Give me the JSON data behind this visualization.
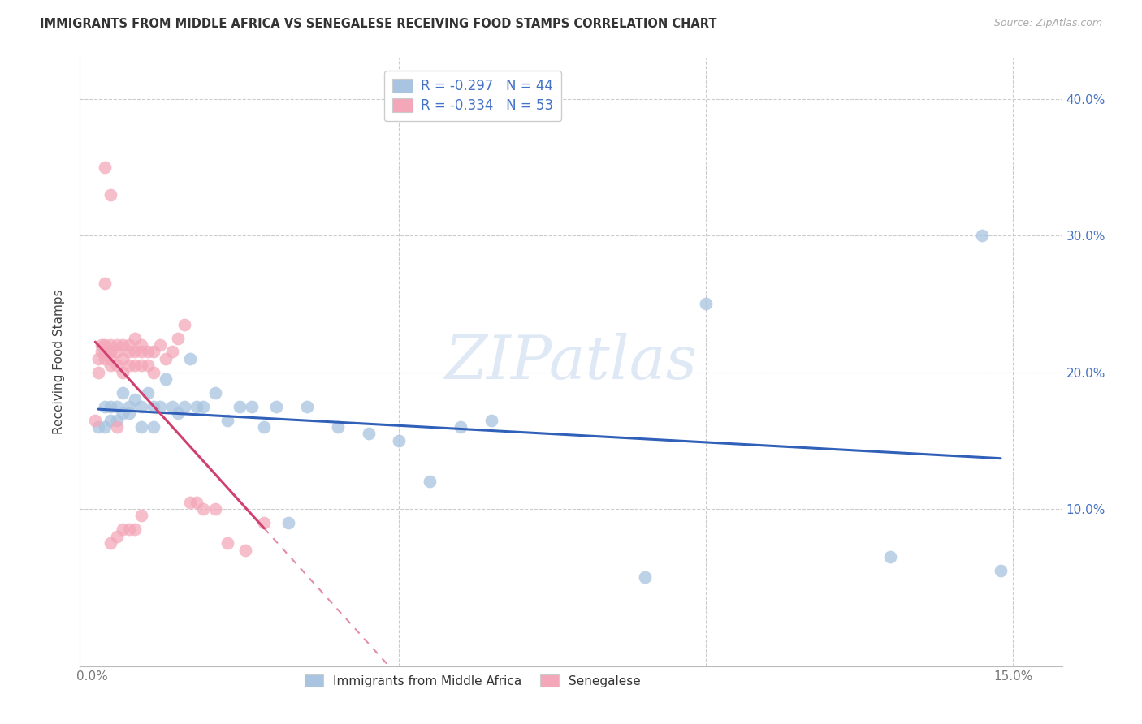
{
  "title": "IMMIGRANTS FROM MIDDLE AFRICA VS SENEGALESE RECEIVING FOOD STAMPS CORRELATION CHART",
  "source": "Source: ZipAtlas.com",
  "ylabel": "Receiving Food Stamps",
  "xlim": [
    -0.002,
    0.158
  ],
  "ylim": [
    -0.015,
    0.43
  ],
  "x_ticks": [
    0.0,
    0.05,
    0.1,
    0.15
  ],
  "x_tick_labels": [
    "0.0%",
    "",
    "",
    "15.0%"
  ],
  "y_ticks": [
    0.0,
    0.1,
    0.2,
    0.3,
    0.4
  ],
  "y_tick_labels": [
    "",
    "10.0%",
    "20.0%",
    "30.0%",
    "40.0%"
  ],
  "blue_color": "#a8c4e0",
  "pink_color": "#f4a7b9",
  "blue_line_color": "#3060b8",
  "pink_line_color": "#d04070",
  "blue_R": -0.297,
  "blue_N": 44,
  "pink_R": -0.334,
  "pink_N": 53,
  "legend_label_1": "Immigrants from Middle Africa",
  "legend_label_2": "Senegalese",
  "watermark_text": "ZIPatlas",
  "blue_x": [
    0.001,
    0.002,
    0.002,
    0.003,
    0.003,
    0.004,
    0.004,
    0.005,
    0.005,
    0.006,
    0.006,
    0.007,
    0.008,
    0.008,
    0.009,
    0.01,
    0.01,
    0.011,
    0.012,
    0.013,
    0.014,
    0.015,
    0.016,
    0.017,
    0.018,
    0.02,
    0.022,
    0.024,
    0.026,
    0.028,
    0.03,
    0.032,
    0.035,
    0.04,
    0.045,
    0.05,
    0.055,
    0.06,
    0.065,
    0.09,
    0.1,
    0.13,
    0.145,
    0.148
  ],
  "blue_y": [
    0.16,
    0.175,
    0.16,
    0.175,
    0.165,
    0.175,
    0.165,
    0.185,
    0.17,
    0.175,
    0.17,
    0.18,
    0.175,
    0.16,
    0.185,
    0.175,
    0.16,
    0.175,
    0.195,
    0.175,
    0.17,
    0.175,
    0.21,
    0.175,
    0.175,
    0.185,
    0.165,
    0.175,
    0.175,
    0.16,
    0.175,
    0.09,
    0.175,
    0.16,
    0.155,
    0.15,
    0.12,
    0.16,
    0.165,
    0.05,
    0.25,
    0.065,
    0.3,
    0.055
  ],
  "pink_x": [
    0.0005,
    0.001,
    0.001,
    0.0015,
    0.0015,
    0.002,
    0.002,
    0.002,
    0.003,
    0.003,
    0.003,
    0.003,
    0.004,
    0.004,
    0.004,
    0.005,
    0.005,
    0.005,
    0.006,
    0.006,
    0.006,
    0.007,
    0.007,
    0.007,
    0.008,
    0.008,
    0.008,
    0.009,
    0.009,
    0.01,
    0.01,
    0.011,
    0.012,
    0.013,
    0.014,
    0.015,
    0.016,
    0.017,
    0.018,
    0.02,
    0.022,
    0.025,
    0.028,
    0.002,
    0.003,
    0.004,
    0.002,
    0.003,
    0.004,
    0.005,
    0.006,
    0.007,
    0.008
  ],
  "pink_y": [
    0.165,
    0.21,
    0.2,
    0.22,
    0.215,
    0.22,
    0.215,
    0.21,
    0.22,
    0.215,
    0.21,
    0.205,
    0.22,
    0.215,
    0.205,
    0.22,
    0.21,
    0.2,
    0.22,
    0.215,
    0.205,
    0.225,
    0.215,
    0.205,
    0.22,
    0.215,
    0.205,
    0.215,
    0.205,
    0.215,
    0.2,
    0.22,
    0.21,
    0.215,
    0.225,
    0.235,
    0.105,
    0.105,
    0.1,
    0.1,
    0.075,
    0.07,
    0.09,
    0.35,
    0.33,
    0.16,
    0.265,
    0.075,
    0.08,
    0.085,
    0.085,
    0.085,
    0.095
  ]
}
